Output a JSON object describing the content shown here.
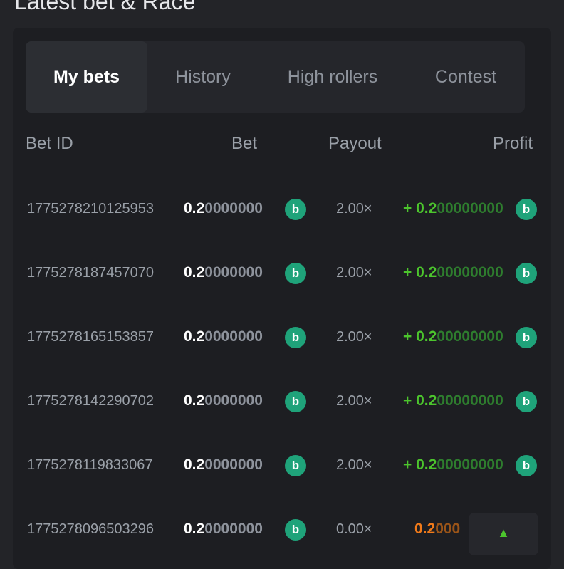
{
  "section_title": "Latest bet & Race",
  "tabs": [
    {
      "label": "My bets",
      "active": true
    },
    {
      "label": "History"
    },
    {
      "label": "High rollers"
    },
    {
      "label": "Contest"
    }
  ],
  "columns": {
    "bet_id": "Bet ID",
    "bet": "Bet",
    "payout": "Payout",
    "profit": "Profit"
  },
  "coin_icon": "bc-coin-icon",
  "colors": {
    "win": "#4cc52d",
    "loss": "#f07a1a",
    "coin": "#1fa37a"
  },
  "rows": [
    {
      "id": "1775278210125953",
      "bet_lead": "0.2",
      "bet_rest": "0000000",
      "payout": "2.00×",
      "profit_sign": "+ ",
      "profit_lead": "0.2",
      "profit_rest": "00000000",
      "win": true
    },
    {
      "id": "1775278187457070",
      "bet_lead": "0.2",
      "bet_rest": "0000000",
      "payout": "2.00×",
      "profit_sign": "+ ",
      "profit_lead": "0.2",
      "profit_rest": "00000000",
      "win": true
    },
    {
      "id": "1775278165153857",
      "bet_lead": "0.2",
      "bet_rest": "0000000",
      "payout": "2.00×",
      "profit_sign": "+ ",
      "profit_lead": "0.2",
      "profit_rest": "00000000",
      "win": true
    },
    {
      "id": "1775278142290702",
      "bet_lead": "0.2",
      "bet_rest": "0000000",
      "payout": "2.00×",
      "profit_sign": "+ ",
      "profit_lead": "0.2",
      "profit_rest": "00000000",
      "win": true
    },
    {
      "id": "1775278119833067",
      "bet_lead": "0.2",
      "bet_rest": "0000000",
      "payout": "2.00×",
      "profit_sign": "+ ",
      "profit_lead": "0.2",
      "profit_rest": "00000000",
      "win": true
    },
    {
      "id": "1775278096503296",
      "bet_lead": "0.2",
      "bet_rest": "0000000",
      "payout": "0.00×",
      "profit_sign": "",
      "profit_lead": "0.2",
      "profit_rest": "000",
      "win": false
    }
  ],
  "scroll_top_icon": "chevron-up-icon"
}
